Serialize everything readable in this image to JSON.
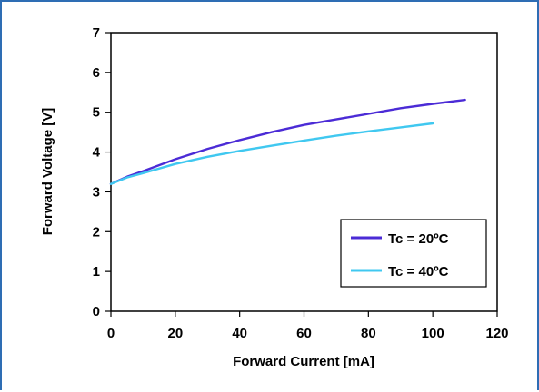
{
  "chart_data": {
    "type": "line",
    "title": "",
    "xlabel": "Forward Current [mA]",
    "ylabel": "Forward Voltage [V]",
    "xlim": [
      0,
      120
    ],
    "ylim": [
      0,
      7
    ],
    "xticks": [
      "0",
      "20",
      "40",
      "60",
      "80",
      "100",
      "120"
    ],
    "yticks": [
      "0",
      "1",
      "2",
      "3",
      "4",
      "5",
      "6",
      "7"
    ],
    "grid": false,
    "legend_position": "bottom-right",
    "series": [
      {
        "name": "Tc = 20ºC",
        "color": "#4b2bd6",
        "x": [
          0,
          5,
          10,
          20,
          30,
          40,
          50,
          60,
          70,
          80,
          90,
          100,
          110
        ],
        "y": [
          3.2,
          3.38,
          3.52,
          3.82,
          4.08,
          4.3,
          4.5,
          4.68,
          4.82,
          4.96,
          5.1,
          5.21,
          5.31
        ]
      },
      {
        "name": "Tc = 40ºC",
        "color": "#40c8f0",
        "x": [
          0,
          5,
          10,
          20,
          30,
          40,
          50,
          60,
          70,
          80,
          90,
          100
        ],
        "y": [
          3.2,
          3.36,
          3.47,
          3.7,
          3.88,
          4.03,
          4.16,
          4.29,
          4.41,
          4.52,
          4.62,
          4.72
        ]
      }
    ]
  }
}
